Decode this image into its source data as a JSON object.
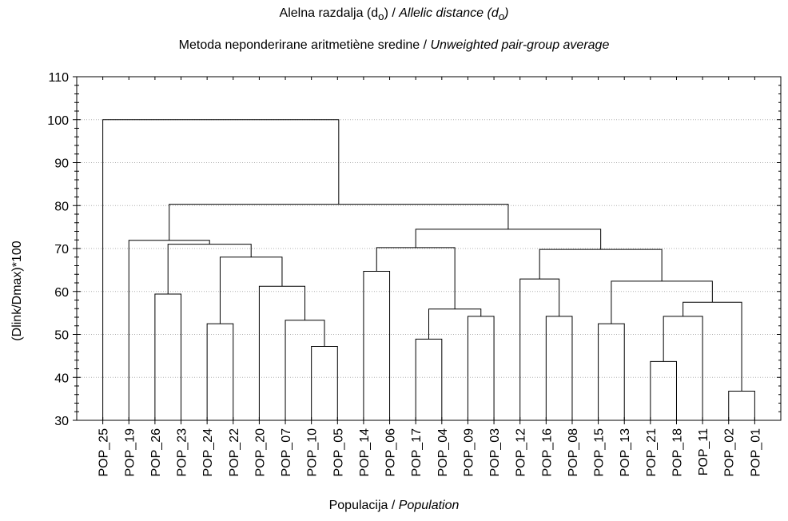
{
  "chart_data": {
    "type": "dendrogram",
    "title": {
      "line1_plain": "Alelna razdalja (d",
      "line1_sub": "o",
      "line1_mid": ") / ",
      "line1_italic": "Allelic distance (d",
      "line1_italic_sub": "o",
      "line1_end": ")",
      "line2_plain": "Metoda neponderirane aritmetiène sredine /  ",
      "line2_italic": "Unweighted pair-group average"
    },
    "ylabel": "(Dlink/Dmax)*100",
    "xlabel_plain": "Populacija / ",
    "xlabel_italic": "Population",
    "ylim": [
      30,
      110
    ],
    "yticks": [
      30,
      40,
      50,
      60,
      70,
      80,
      90,
      100,
      110
    ],
    "grid": "horizontal dotted",
    "leaves": [
      "POP_25",
      "POP_19",
      "POP_26",
      "POP_23",
      "POP_24",
      "POP_22",
      "POP_20",
      "POP_07",
      "POP_10",
      "POP_05",
      "POP_14",
      "POP_06",
      "POP_17",
      "POP_04",
      "POP_09",
      "POP_03",
      "POP_12",
      "POP_16",
      "POP_08",
      "POP_15",
      "POP_13",
      "POP_21",
      "POP_18",
      "POP_11",
      "POP_02",
      "POP_01"
    ],
    "merges": [
      {
        "left": "POP_02",
        "right": "POP_01",
        "height": 36.8
      },
      {
        "left": "POP_21",
        "right": "POP_18",
        "height": 43.7
      },
      {
        "left": "POP_10",
        "right": "POP_05",
        "height": 47.2
      },
      {
        "left": "POP_17",
        "right": "POP_04",
        "height": 48.9
      },
      {
        "left": "POP_24",
        "right": "POP_22",
        "height": 52.5
      },
      {
        "left": "POP_15",
        "right": "POP_13",
        "height": 52.5
      },
      {
        "left": "POP_07",
        "right": "C3",
        "height": 53.3
      },
      {
        "left": "POP_09",
        "right": "POP_03",
        "height": 54.2
      },
      {
        "left": "POP_16",
        "right": "POP_08",
        "height": 54.2
      },
      {
        "left": "C2",
        "right": "POP_11",
        "height": 54.2
      },
      {
        "left": "C4",
        "right": "C8",
        "height": 55.9
      },
      {
        "left": "C10",
        "right": "C1",
        "height": 57.5
      },
      {
        "left": "POP_26",
        "right": "POP_23",
        "height": 59.4
      },
      {
        "left": "POP_20",
        "right": "C7",
        "height": 61.2
      },
      {
        "left": "C6",
        "right": "C12",
        "height": 62.4
      },
      {
        "left": "POP_12",
        "right": "C9",
        "height": 62.9
      },
      {
        "left": "POP_14",
        "right": "POP_06",
        "height": 64.7
      },
      {
        "left": "C5",
        "right": "C14",
        "height": 68.0
      },
      {
        "left": "C16",
        "right": "C15",
        "height": 69.8
      },
      {
        "left": "C17",
        "right": "C11",
        "height": 70.2
      },
      {
        "left": "C13",
        "right": "C18",
        "height": 71.0
      },
      {
        "left": "POP_19",
        "right": "C21",
        "height": 71.9
      },
      {
        "left": "C20",
        "right": "C19",
        "height": 74.5
      },
      {
        "left": "C22",
        "right": "C23",
        "height": 80.3
      },
      {
        "left": "POP_25",
        "right": "C24",
        "height": 100.0
      }
    ]
  }
}
